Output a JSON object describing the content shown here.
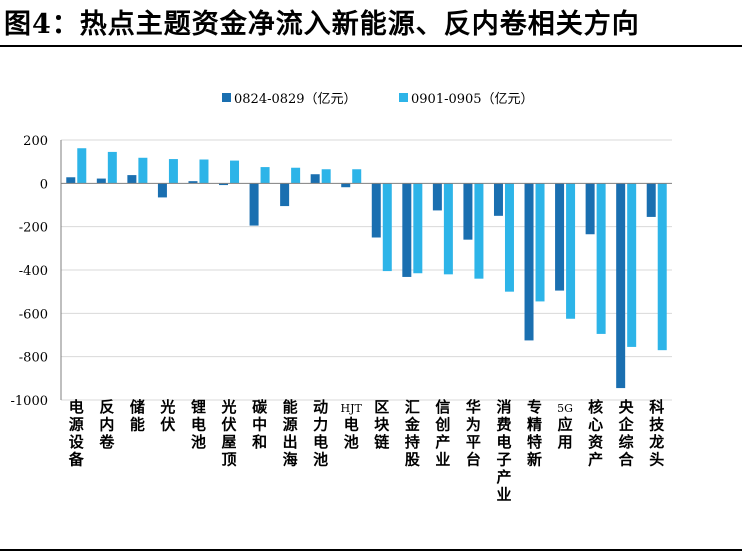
{
  "title": "图4：热点主题资金净流入新能源、反内卷相关方向",
  "colors": {
    "series1": "#1A6FB0",
    "series2": "#2DB4E8",
    "grid": "#D9D9D9",
    "axis": "#7F7F7F"
  },
  "chart_data": {
    "type": "bar",
    "title": "",
    "xlabel": "",
    "ylabel": "",
    "ylim": [
      -1000,
      200
    ],
    "yticks": [
      200,
      0,
      -200,
      -400,
      -600,
      -800,
      -1000
    ],
    "grid": true,
    "legend_position": "top-center",
    "categories": [
      "电源设备",
      "反内卷",
      "储能",
      "光伏",
      "锂电池",
      "光伏屋顶",
      "碳中和",
      "能源出海",
      "动力电池",
      "HJT电池",
      "区块链",
      "汇金持股",
      "信创产业",
      "华为平台",
      "消费电子产业",
      "专精特新",
      "5G应用",
      "核心资产",
      "央企综合",
      "科技龙头"
    ],
    "series": [
      {
        "name": "0824-0829（亿元）",
        "values": [
          28,
          22,
          38,
          -65,
          10,
          -8,
          -195,
          -105,
          42,
          -18,
          -250,
          -432,
          -125,
          -260,
          -150,
          -725,
          -495,
          -235,
          -945,
          -155
        ]
      },
      {
        "name": "0901-0905（亿元）",
        "values": [
          162,
          145,
          118,
          112,
          110,
          105,
          75,
          72,
          65,
          65,
          -405,
          -415,
          -420,
          -440,
          -500,
          -545,
          -625,
          -695,
          -755,
          -770
        ]
      }
    ]
  }
}
